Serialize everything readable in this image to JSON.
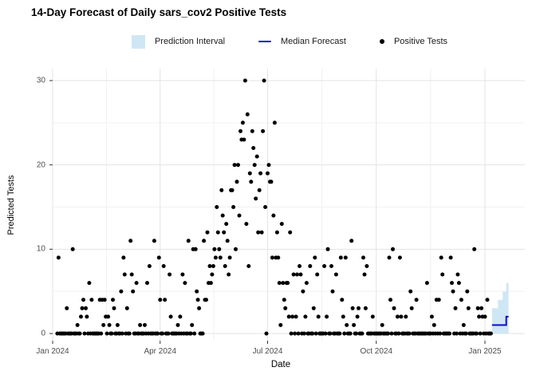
{
  "title": "14-Day Forecast of Daily sars_cov2 Positive Tests",
  "legend": {
    "prediction_interval": "Prediction Interval",
    "median_forecast": "Median Forecast",
    "positive_tests": "Positive Tests"
  },
  "colors": {
    "prediction_interval": "#cfe7f5",
    "median_forecast": "#0d0dd0",
    "positive_tests": "#000000",
    "grid_major": "#e3e3e3",
    "grid_minor": "#f1f1f1",
    "axis_tick": "#333333",
    "axis_text": "#4d4d4d"
  },
  "chart_data": {
    "type": "scatter",
    "title": "14-Day Forecast of Daily sars_cov2 Positive Tests",
    "xlabel": "Date",
    "ylabel": "Predicted Tests",
    "ylim": [
      0,
      30
    ],
    "grid": true,
    "legend_position": "top",
    "y_ticks": [
      0,
      10,
      20,
      30
    ],
    "y_minor_ticks": [
      5,
      15,
      25
    ],
    "x_ticks": [
      {
        "label": "Jan 2024",
        "day": 0
      },
      {
        "label": "Apr 2024",
        "day": 91
      },
      {
        "label": "Jul 2024",
        "day": 182
      },
      {
        "label": "Oct 2024",
        "day": 274
      },
      {
        "label": "Jan 2025",
        "day": 366
      }
    ],
    "x_minor_tick_days": [
      45.5,
      136.5,
      228,
      320
    ],
    "series_start_date": "2024-01-01",
    "observed_daily_positive_tests": [
      null,
      null,
      null,
      null,
      0,
      9,
      0,
      0,
      0,
      0,
      0,
      0,
      3,
      0,
      0,
      0,
      0,
      10,
      0,
      0,
      0,
      1,
      0,
      0,
      2,
      3,
      4,
      0,
      3,
      2,
      0,
      6,
      0,
      4,
      0,
      0,
      0,
      0,
      0,
      0,
      4,
      0,
      4,
      1,
      4,
      2,
      0,
      2,
      1,
      0,
      0,
      4,
      3,
      0,
      0,
      1,
      0,
      0,
      5,
      0,
      9,
      7,
      0,
      3,
      0,
      0,
      11,
      7,
      5,
      0,
      0,
      6,
      0,
      0,
      1,
      0,
      0,
      0,
      1,
      0,
      6,
      0,
      8,
      0,
      0,
      0,
      11,
      0,
      0,
      0,
      9,
      4,
      0,
      0,
      8,
      4,
      0,
      0,
      0,
      7,
      2,
      0,
      0,
      0,
      0,
      0,
      1,
      0,
      2,
      0,
      7,
      0,
      6,
      0,
      0,
      11,
      0,
      0,
      1,
      10,
      0,
      10,
      5,
      4,
      3,
      0,
      0,
      0,
      11,
      4,
      4,
      12,
      6,
      8,
      6,
      7,
      8,
      10,
      9,
      15,
      12,
      10,
      9,
      17,
      14,
      12,
      8,
      13,
      11,
      7,
      9,
      17,
      17,
      15,
      20,
      10,
      18,
      20,
      14,
      24,
      23,
      25,
      23,
      30,
      13,
      26,
      8,
      19,
      18,
      24,
      22,
      20,
      16,
      21,
      12,
      17,
      19,
      12,
      24,
      30,
      15,
      0,
      19,
      20,
      18,
      18,
      9,
      14,
      25,
      9,
      12,
      9,
      6,
      1,
      13,
      6,
      4,
      3,
      6,
      6,
      2,
      12,
      0,
      2,
      7,
      0,
      2,
      7,
      0,
      8,
      7,
      0,
      5,
      0,
      2,
      6,
      0,
      0,
      8,
      0,
      0,
      3,
      9,
      0,
      7,
      2,
      0,
      0,
      0,
      0,
      8,
      0,
      2,
      10,
      0,
      0,
      8,
      5,
      0,
      0,
      7,
      0,
      0,
      0,
      9,
      4,
      2,
      0,
      9,
      1,
      0,
      0,
      0,
      11,
      3,
      1,
      0,
      0,
      2,
      3,
      0,
      0,
      0,
      9,
      7,
      3,
      8,
      0,
      0,
      0,
      0,
      2,
      0,
      0,
      0,
      0,
      0,
      0,
      0,
      1,
      0,
      0,
      0,
      0,
      0,
      9,
      4,
      0,
      10,
      3,
      0,
      0,
      2,
      0,
      9,
      2,
      0,
      0,
      0,
      2,
      0,
      0,
      0,
      5,
      3,
      0,
      0,
      0,
      4,
      0,
      0,
      0,
      0,
      0,
      0,
      0,
      0,
      6,
      0,
      0,
      0,
      2,
      0,
      1,
      0,
      4,
      0,
      4,
      0,
      9,
      7,
      0,
      0,
      0,
      0,
      0,
      0,
      9,
      6,
      5,
      0,
      3,
      0,
      7,
      6,
      0,
      4,
      0,
      1,
      0,
      0,
      5,
      3,
      0,
      0,
      0,
      0,
      10,
      0,
      0,
      3,
      2,
      0,
      3,
      2,
      0,
      2,
      0,
      4,
      0,
      0,
      0
    ],
    "forecast": {
      "horizon_days": 14,
      "start_day_index": 372,
      "median": [
        1,
        1,
        1,
        1,
        1,
        1,
        1,
        1,
        1,
        1,
        1,
        1,
        2,
        2
      ],
      "upper": [
        3,
        3,
        3,
        3,
        3,
        4,
        4,
        4,
        4,
        5,
        5,
        5,
        6,
        6
      ],
      "lower": [
        0,
        0,
        0,
        0,
        0,
        0,
        0,
        0,
        0,
        0,
        0,
        0,
        0,
        0
      ]
    }
  }
}
